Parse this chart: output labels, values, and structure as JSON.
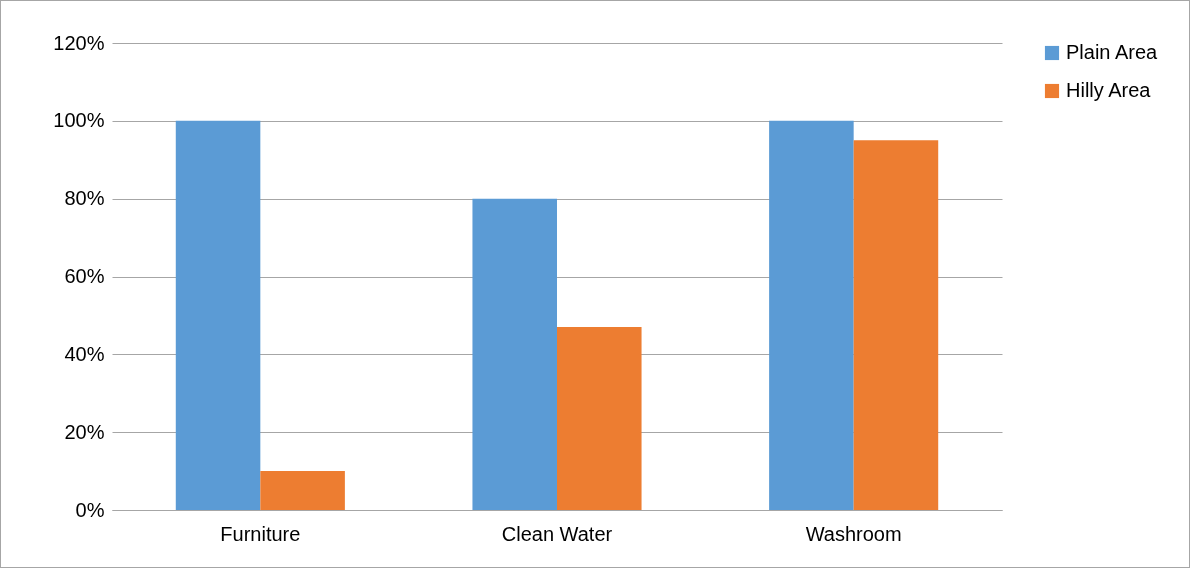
{
  "chart_data": {
    "type": "bar",
    "categories": [
      "Furniture",
      "Clean Water",
      "Washroom"
    ],
    "series": [
      {
        "name": "Plain Area",
        "color": "#5b9bd5",
        "values": [
          100,
          80,
          100
        ]
      },
      {
        "name": "Hilly Area",
        "color": "#ed7d31",
        "values": [
          10,
          47,
          95
        ]
      }
    ],
    "ylim": [
      0,
      120
    ],
    "yticks": [
      {
        "value": 0,
        "label": "0%"
      },
      {
        "value": 20,
        "label": "20%"
      },
      {
        "value": 40,
        "label": "40%"
      },
      {
        "value": 60,
        "label": "60%"
      },
      {
        "value": 80,
        "label": "80%"
      },
      {
        "value": 100,
        "label": "100%"
      },
      {
        "value": 120,
        "label": "120%"
      }
    ],
    "grid": "y",
    "legend": "right"
  }
}
